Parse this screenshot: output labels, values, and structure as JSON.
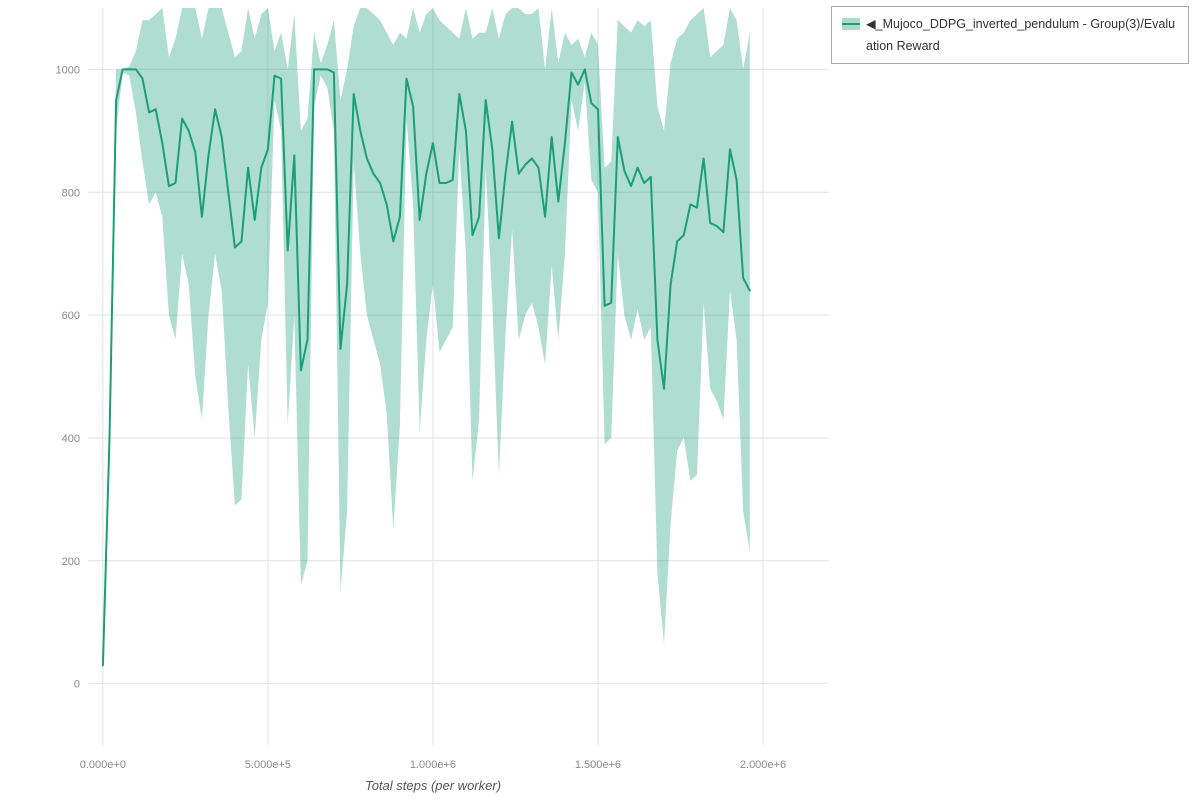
{
  "legend": {
    "toggle_icon": "◀",
    "label": "_Mujoco_DDPG_inverted_pendulum - Group(3)/Evaluation Reward",
    "swatch_line_color": "#1b9e77",
    "swatch_band_color": "#aedbc9"
  },
  "colors": {
    "line": "#1b9e77",
    "band": "rgba(27,158,119,0.35)",
    "grid": "#e2e2e2",
    "tick_text": "#8a8a8a",
    "background": "#ffffff"
  },
  "chart_data": {
    "type": "line",
    "xlabel": "Total steps (per worker)",
    "ylabel": "",
    "grid": true,
    "legend_position": "top-right-outside",
    "xlim": [
      -45000,
      2200000
    ],
    "ylim": [
      -100,
      1100
    ],
    "x_tick_values": [
      0,
      500000,
      1000000,
      1500000,
      2000000
    ],
    "x_tick_labels": [
      "0.000e+0",
      "5.000e+5",
      "1.000e+6",
      "1.500e+6",
      "2.000e+6"
    ],
    "y_tick_values": [
      0,
      200,
      400,
      600,
      800,
      1000
    ],
    "y_tick_labels": [
      "0",
      "200",
      "400",
      "600",
      "800",
      "1000"
    ],
    "series": [
      {
        "name": "Mujoco_DDPG_inverted_pendulum - Group(3)/Evaluation Reward",
        "color": "#1b9e77",
        "band_color": "rgba(27,158,119,0.35)",
        "x": [
          0,
          20000,
          40000,
          60000,
          80000,
          100000,
          120000,
          140000,
          160000,
          180000,
          200000,
          220000,
          240000,
          260000,
          280000,
          300000,
          320000,
          340000,
          360000,
          380000,
          400000,
          420000,
          440000,
          460000,
          480000,
          500000,
          520000,
          540000,
          560000,
          580000,
          600000,
          620000,
          640000,
          660000,
          680000,
          700000,
          720000,
          740000,
          760000,
          780000,
          800000,
          820000,
          840000,
          860000,
          880000,
          900000,
          920000,
          940000,
          960000,
          980000,
          1000000,
          1020000,
          1040000,
          1060000,
          1080000,
          1100000,
          1120000,
          1140000,
          1160000,
          1180000,
          1200000,
          1220000,
          1240000,
          1260000,
          1280000,
          1300000,
          1320000,
          1340000,
          1360000,
          1380000,
          1400000,
          1420000,
          1440000,
          1460000,
          1480000,
          1500000,
          1520000,
          1540000,
          1560000,
          1580000,
          1600000,
          1620000,
          1640000,
          1660000,
          1680000,
          1700000,
          1720000,
          1740000,
          1760000,
          1780000,
          1800000,
          1820000,
          1840000,
          1860000,
          1880000,
          1900000,
          1920000,
          1940000,
          1960000
        ],
        "mean": [
          30,
          400,
          950,
          1000,
          1000,
          1000,
          985,
          930,
          935,
          880,
          810,
          815,
          920,
          900,
          865,
          760,
          860,
          935,
          890,
          800,
          710,
          720,
          840,
          755,
          840,
          870,
          990,
          985,
          705,
          860,
          510,
          560,
          1000,
          1000,
          1000,
          995,
          545,
          650,
          960,
          900,
          855,
          830,
          815,
          780,
          720,
          760,
          985,
          940,
          755,
          830,
          880,
          815,
          815,
          820,
          960,
          900,
          730,
          760,
          950,
          870,
          725,
          830,
          915,
          830,
          845,
          855,
          840,
          760,
          890,
          785,
          880,
          995,
          975,
          1000,
          945,
          935,
          615,
          620,
          890,
          835,
          810,
          840,
          815,
          825,
          560,
          480,
          650,
          720,
          730,
          780,
          775,
          855,
          750,
          745,
          735,
          870,
          820,
          660,
          640
        ],
        "lower": [
          25,
          380,
          900,
          995,
          990,
          930,
          850,
          780,
          800,
          760,
          600,
          560,
          700,
          650,
          500,
          430,
          600,
          700,
          640,
          450,
          290,
          300,
          520,
          400,
          560,
          620,
          950,
          900,
          420,
          600,
          160,
          200,
          940,
          990,
          970,
          900,
          150,
          280,
          850,
          700,
          600,
          560,
          520,
          440,
          250,
          420,
          920,
          780,
          410,
          560,
          650,
          540,
          560,
          580,
          870,
          700,
          330,
          430,
          840,
          620,
          340,
          570,
          740,
          560,
          600,
          620,
          580,
          520,
          680,
          560,
          700,
          950,
          900,
          980,
          820,
          800,
          390,
          400,
          700,
          600,
          560,
          610,
          560,
          580,
          180,
          65,
          260,
          380,
          400,
          330,
          340,
          620,
          480,
          460,
          430,
          640,
          560,
          280,
          215
        ],
        "upper": [
          35,
          420,
          1000,
          1000,
          1005,
          1030,
          1080,
          1080,
          1090,
          1100,
          1020,
          1050,
          1100,
          1100,
          1100,
          1050,
          1100,
          1100,
          1100,
          1060,
          1020,
          1030,
          1100,
          1050,
          1090,
          1100,
          1030,
          1060,
          1000,
          1090,
          900,
          920,
          1060,
          1010,
          1040,
          1080,
          950,
          1000,
          1070,
          1100,
          1100,
          1090,
          1080,
          1060,
          1040,
          1060,
          1050,
          1100,
          1060,
          1090,
          1100,
          1080,
          1070,
          1060,
          1050,
          1100,
          1050,
          1060,
          1060,
          1100,
          1050,
          1090,
          1100,
          1100,
          1090,
          1090,
          1100,
          1000,
          1100,
          1010,
          1060,
          1040,
          1050,
          1020,
          1060,
          1040,
          840,
          850,
          1080,
          1070,
          1060,
          1080,
          1070,
          1080,
          940,
          900,
          1010,
          1050,
          1060,
          1080,
          1090,
          1100,
          1020,
          1030,
          1040,
          1100,
          1080,
          1000,
          1060
        ]
      }
    ]
  }
}
